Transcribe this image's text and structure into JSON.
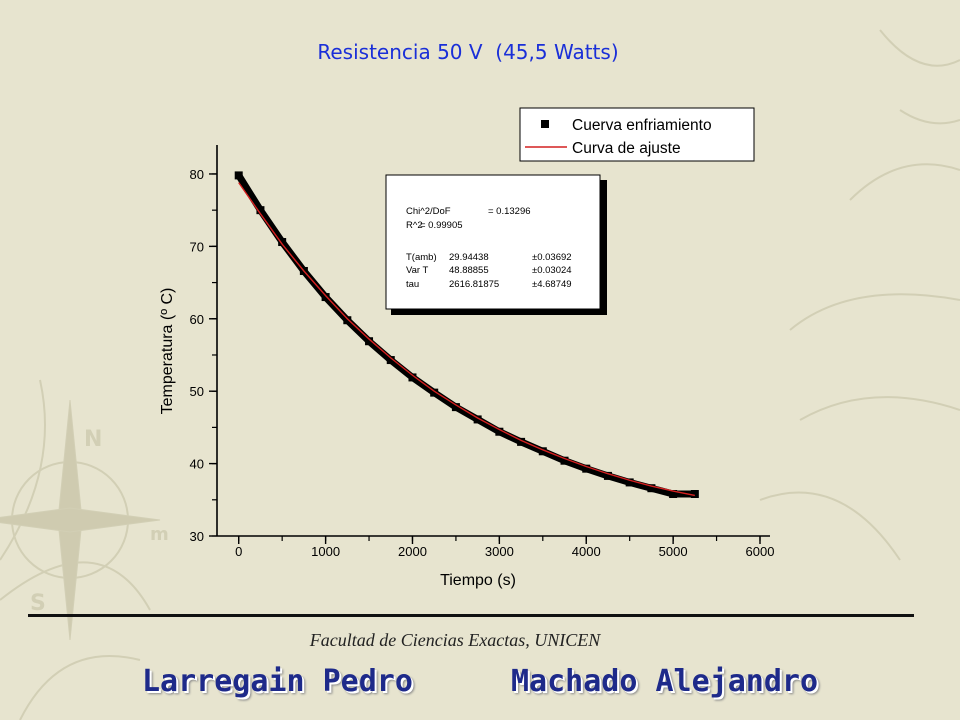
{
  "slide": {
    "title": "Resistencia 50 V  (45,5 Watts)",
    "affiliation": "Facultad de Ciencias Exactas, UNICEN",
    "authors": [
      "Larregain Pedro",
      "Machado Alejandro"
    ],
    "colors": {
      "background": "#e7e4cf",
      "title": "#1a2fd8",
      "authors": "#1e2a8a",
      "decoration": "#d2cfb5",
      "data_series": "#000000",
      "fit_series": "#d42020"
    },
    "decoration_icon": "compass-rose-icon"
  },
  "chart_data": {
    "type": "scatter",
    "xlabel": "Tiempo (s)",
    "ylabel": "Temperatura (º C)",
    "xlim": [
      -250,
      6000
    ],
    "ylim": [
      30,
      84
    ],
    "x_ticks": [
      0,
      1000,
      2000,
      3000,
      4000,
      5000,
      6000
    ],
    "y_ticks": [
      30,
      40,
      50,
      60,
      70,
      80
    ],
    "grid": false,
    "legend_position": "top-right",
    "series": [
      {
        "name": "Cuerva enfriamiento",
        "style": "markers",
        "color": "#000000",
        "x": [
          0,
          250,
          500,
          750,
          1000,
          1250,
          1500,
          1750,
          2000,
          2250,
          2500,
          2750,
          3000,
          3250,
          3500,
          3750,
          4000,
          4250,
          4500,
          4750,
          5000,
          5250
        ],
        "y": [
          79.8,
          75.0,
          70.6,
          66.6,
          63.0,
          59.8,
          56.9,
          54.3,
          51.9,
          49.8,
          47.8,
          46.1,
          44.4,
          43.0,
          41.7,
          40.4,
          39.3,
          38.3,
          37.4,
          36.6,
          35.8,
          35.8
        ]
      },
      {
        "name": "Curva de ajuste",
        "style": "line",
        "color": "#d42020",
        "model": "T(amb) + Var T * exp(-t/tau)",
        "x": [
          0,
          250,
          500,
          750,
          1000,
          1250,
          1500,
          1750,
          2000,
          2250,
          2500,
          2750,
          3000,
          3250,
          3500,
          3750,
          4000,
          4250,
          4500,
          4750,
          5000,
          5250
        ],
        "y": [
          78.8,
          74.5,
          70.3,
          66.6,
          63.2,
          60.0,
          57.2,
          54.6,
          52.2,
          50.0,
          48.1,
          46.3,
          44.7,
          43.2,
          41.9,
          40.7,
          39.6,
          38.6,
          37.7,
          36.9,
          36.2,
          35.6
        ]
      }
    ],
    "fit_box": {
      "rows": [
        {
          "label": "Chi^2/DoF",
          "value": "= 0.13296",
          "error": ""
        },
        {
          "label": "R^2",
          "value": "=  0.99905",
          "error": ""
        },
        {
          "label": "T(amb)",
          "value": "29.94438",
          "error": "±0.03692"
        },
        {
          "label": "Var T",
          "value": "48.88855",
          "error": "±0.03024"
        },
        {
          "label": "tau",
          "value": "2616.81875",
          "error": "±4.68749"
        }
      ]
    }
  }
}
